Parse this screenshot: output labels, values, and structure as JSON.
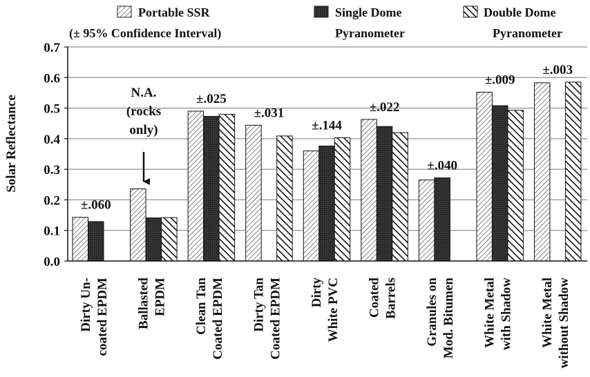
{
  "colors": {
    "portable": "#ffffff",
    "single": "#2b2b2b",
    "double": "#ffffff",
    "ink": "#111111"
  },
  "legend": {
    "items": [
      {
        "key": "portable",
        "lines": [
          "Portable SSR",
          "(± 95% Confidence Interval)"
        ],
        "pattern": "thin-hatch"
      },
      {
        "key": "single",
        "lines": [
          "Single Dome",
          "Pyranometer"
        ],
        "pattern": "dark-solid"
      },
      {
        "key": "double",
        "lines": [
          "Double Dome",
          "Pyranometer"
        ],
        "pattern": "thick-hatch"
      }
    ]
  },
  "arrow_annotation": {
    "lines": [
      "N.A.",
      "(rocks",
      "only)"
    ]
  },
  "chart_data": {
    "type": "bar",
    "title": "",
    "xlabel": "",
    "ylabel": "Solar Reflectance",
    "ylim": [
      0,
      0.7
    ],
    "yticks": [
      "0.0",
      "0.1",
      "0.2",
      "0.3",
      "0.4",
      "0.5",
      "0.6",
      "0.7"
    ],
    "grid": true,
    "legend_position": "top",
    "categories": [
      [
        "Dirty Un-",
        "coated EPDM"
      ],
      [
        "Ballasted",
        "EPDM"
      ],
      [
        "Clean Tan",
        "Coated EPDM"
      ],
      [
        "Dirty Tan",
        "Coated EPDM"
      ],
      [
        "Dirty",
        "White PVC"
      ],
      [
        "Coated",
        "Barrels"
      ],
      [
        "Granules on",
        "Mod. Bitumen"
      ],
      [
        "White Metal",
        "with Shadow"
      ],
      [
        "White Metal",
        "without Shadow"
      ]
    ],
    "series": [
      {
        "name": "Portable SSR",
        "values": [
          0.143,
          0.236,
          0.49,
          0.444,
          0.36,
          0.463,
          0.265,
          0.552,
          0.583
        ]
      },
      {
        "name": "Single Dome Pyranometer",
        "values": [
          0.129,
          0.141,
          0.473,
          null,
          0.376,
          0.44,
          0.272,
          0.508,
          null
        ]
      },
      {
        "name": "Double Dome Pyranometer",
        "values": [
          null,
          0.142,
          0.48,
          0.409,
          0.403,
          0.42,
          null,
          0.493,
          0.585
        ]
      }
    ],
    "confidence_labels": [
      "±.060",
      "",
      "±.025",
      "±.031",
      "±.144",
      "±.022",
      "±.040",
      "±.009",
      "±.003"
    ]
  }
}
